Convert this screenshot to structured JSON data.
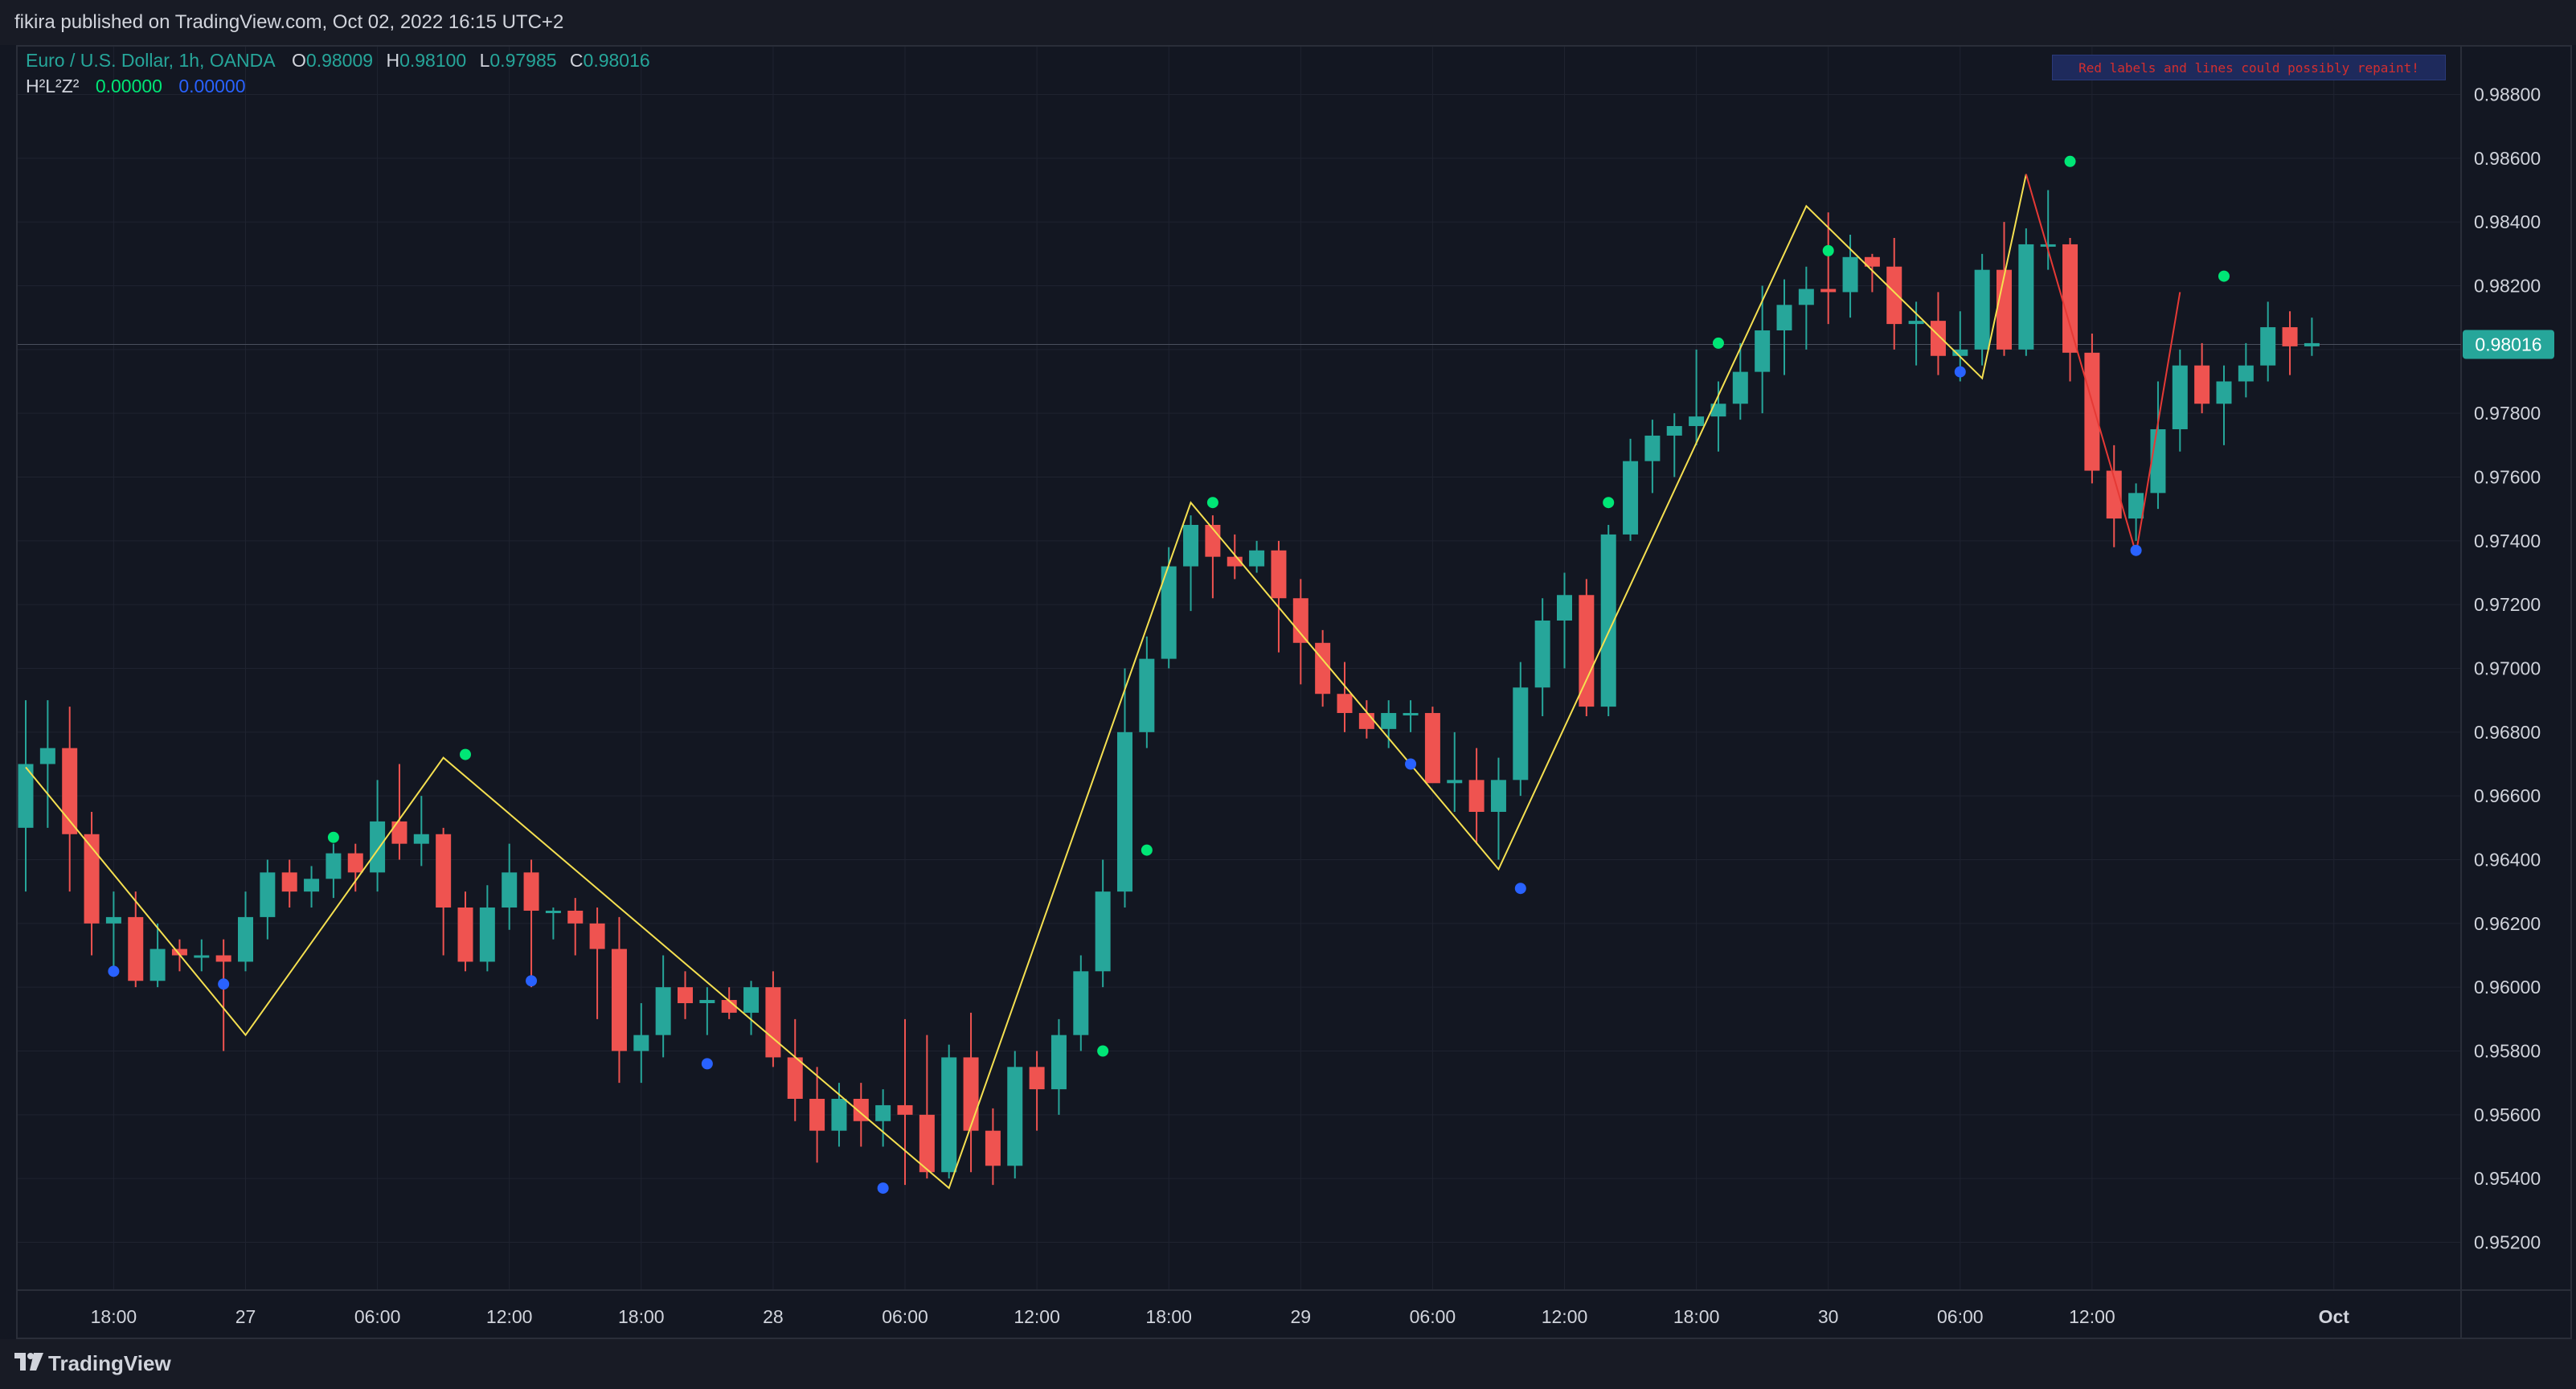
{
  "header": {
    "publisher_text": "fikira published on TradingView.com, Oct 02, 2022 16:15 UTC+2"
  },
  "legend": {
    "symbol": "Euro / U.S. Dollar, 1h, OANDA",
    "o_label": "O",
    "o_value": "0.98009",
    "h_label": "H",
    "h_value": "0.98100",
    "l_label": "L",
    "l_value": "0.97985",
    "c_label": "C",
    "c_value": "0.98016",
    "indicator_name": "H²L²Z²",
    "indicator_value_1": "0.00000",
    "indicator_value_2": "0.00000"
  },
  "warning_label": "Red labels and lines could possibly repaint!",
  "footer": {
    "logo_text": "TradingView"
  },
  "colors": {
    "background": "#131722",
    "up_candle": "#26a69a",
    "down_candle": "#ef5350",
    "zigzag": "#f5e050",
    "zigzag_repaint": "#e53935",
    "high_dot": "#00e676",
    "low_dot": "#2962ff",
    "price_label_bg": "#26a69a",
    "axis_text": "#d1d4dc"
  },
  "chart_data": {
    "type": "candlestick",
    "symbol": "EURUSD",
    "timeframe": "1h",
    "ylim": [
      0.9505,
      0.9895
    ],
    "y_ticks": [
      "0.98800",
      "0.98600",
      "0.98400",
      "0.98200",
      "0.98000",
      "0.97800",
      "0.97600",
      "0.97400",
      "0.97200",
      "0.97000",
      "0.96800",
      "0.96600",
      "0.96400",
      "0.96200",
      "0.96000",
      "0.95800",
      "0.95600",
      "0.95400",
      "0.95200"
    ],
    "x_ticks": [
      {
        "label": "18:00",
        "bar": 4
      },
      {
        "label": "27",
        "bar": 10
      },
      {
        "label": "06:00",
        "bar": 16
      },
      {
        "label": "12:00",
        "bar": 22
      },
      {
        "label": "18:00",
        "bar": 28
      },
      {
        "label": "28",
        "bar": 34
      },
      {
        "label": "06:00",
        "bar": 40
      },
      {
        "label": "12:00",
        "bar": 46
      },
      {
        "label": "18:00",
        "bar": 52
      },
      {
        "label": "29",
        "bar": 58
      },
      {
        "label": "06:00",
        "bar": 64
      },
      {
        "label": "12:00",
        "bar": 70
      },
      {
        "label": "18:00",
        "bar": 76
      },
      {
        "label": "30",
        "bar": 82
      },
      {
        "label": "06:00",
        "bar": 88
      },
      {
        "label": "12:00",
        "bar": 94
      },
      {
        "label": "Oct",
        "bar": 105
      }
    ],
    "last_price": "0.98016",
    "candles": [
      [
        0.965,
        0.969,
        0.963,
        0.967
      ],
      [
        0.967,
        0.969,
        0.965,
        0.9675
      ],
      [
        0.9675,
        0.9688,
        0.963,
        0.9648
      ],
      [
        0.9648,
        0.9655,
        0.961,
        0.962
      ],
      [
        0.962,
        0.963,
        0.9605,
        0.9622
      ],
      [
        0.9622,
        0.963,
        0.96,
        0.9602
      ],
      [
        0.9602,
        0.962,
        0.96,
        0.9612
      ],
      [
        0.9612,
        0.9615,
        0.9605,
        0.961
      ],
      [
        0.961,
        0.9615,
        0.9605,
        0.961
      ],
      [
        0.961,
        0.9615,
        0.958,
        0.9608
      ],
      [
        0.9608,
        0.963,
        0.9605,
        0.9622
      ],
      [
        0.9622,
        0.964,
        0.9615,
        0.9636
      ],
      [
        0.9636,
        0.964,
        0.9625,
        0.963
      ],
      [
        0.963,
        0.9638,
        0.9625,
        0.9634
      ],
      [
        0.9634,
        0.9645,
        0.9628,
        0.9642
      ],
      [
        0.9642,
        0.9645,
        0.963,
        0.9636
      ],
      [
        0.9636,
        0.9665,
        0.963,
        0.9652
      ],
      [
        0.9652,
        0.967,
        0.964,
        0.9645
      ],
      [
        0.9645,
        0.966,
        0.9638,
        0.9648
      ],
      [
        0.9648,
        0.965,
        0.961,
        0.9625
      ],
      [
        0.9625,
        0.963,
        0.9605,
        0.9608
      ],
      [
        0.9608,
        0.9632,
        0.9605,
        0.9625
      ],
      [
        0.9625,
        0.9645,
        0.9618,
        0.9636
      ],
      [
        0.9636,
        0.964,
        0.96,
        0.9624
      ],
      [
        0.9624,
        0.9625,
        0.9615,
        0.9624
      ],
      [
        0.9624,
        0.9628,
        0.961,
        0.962
      ],
      [
        0.962,
        0.9625,
        0.959,
        0.9612
      ],
      [
        0.9612,
        0.9622,
        0.957,
        0.958
      ],
      [
        0.958,
        0.9595,
        0.957,
        0.9585
      ],
      [
        0.9585,
        0.961,
        0.9578,
        0.96
      ],
      [
        0.96,
        0.9605,
        0.959,
        0.9595
      ],
      [
        0.9595,
        0.96,
        0.9585,
        0.9596
      ],
      [
        0.9596,
        0.96,
        0.959,
        0.9592
      ],
      [
        0.9592,
        0.9602,
        0.9585,
        0.96
      ],
      [
        0.96,
        0.9605,
        0.9575,
        0.9578
      ],
      [
        0.9578,
        0.959,
        0.9558,
        0.9565
      ],
      [
        0.9565,
        0.9575,
        0.9545,
        0.9555
      ],
      [
        0.9555,
        0.957,
        0.955,
        0.9565
      ],
      [
        0.9565,
        0.957,
        0.955,
        0.9558
      ],
      [
        0.9558,
        0.9568,
        0.955,
        0.9563
      ],
      [
        0.9563,
        0.959,
        0.9538,
        0.956
      ],
      [
        0.956,
        0.9585,
        0.954,
        0.9542
      ],
      [
        0.9542,
        0.9582,
        0.954,
        0.9578
      ],
      [
        0.9578,
        0.9592,
        0.9542,
        0.9555
      ],
      [
        0.9555,
        0.9562,
        0.9538,
        0.9544
      ],
      [
        0.9544,
        0.958,
        0.954,
        0.9575
      ],
      [
        0.9575,
        0.958,
        0.9555,
        0.9568
      ],
      [
        0.9568,
        0.959,
        0.956,
        0.9585
      ],
      [
        0.9585,
        0.961,
        0.958,
        0.9605
      ],
      [
        0.9605,
        0.964,
        0.96,
        0.963
      ],
      [
        0.963,
        0.97,
        0.9625,
        0.968
      ],
      [
        0.968,
        0.971,
        0.9675,
        0.9703
      ],
      [
        0.9703,
        0.9738,
        0.97,
        0.9732
      ],
      [
        0.9732,
        0.9748,
        0.9718,
        0.9745
      ],
      [
        0.9745,
        0.9748,
        0.9722,
        0.9735
      ],
      [
        0.9735,
        0.9742,
        0.9728,
        0.9732
      ],
      [
        0.9732,
        0.974,
        0.973,
        0.9737
      ],
      [
        0.9737,
        0.974,
        0.9705,
        0.9722
      ],
      [
        0.9722,
        0.9728,
        0.9695,
        0.9708
      ],
      [
        0.9708,
        0.9712,
        0.9688,
        0.9692
      ],
      [
        0.9692,
        0.9702,
        0.968,
        0.9686
      ],
      [
        0.9686,
        0.969,
        0.9678,
        0.9681
      ],
      [
        0.9681,
        0.969,
        0.9675,
        0.9686
      ],
      [
        0.9686,
        0.969,
        0.968,
        0.9686
      ],
      [
        0.9686,
        0.9688,
        0.9665,
        0.9664
      ],
      [
        0.9664,
        0.968,
        0.9655,
        0.9665
      ],
      [
        0.9665,
        0.9675,
        0.9645,
        0.9655
      ],
      [
        0.9655,
        0.9672,
        0.964,
        0.9665
      ],
      [
        0.9665,
        0.9702,
        0.966,
        0.9694
      ],
      [
        0.9694,
        0.9722,
        0.9685,
        0.9715
      ],
      [
        0.9715,
        0.973,
        0.97,
        0.9723
      ],
      [
        0.9723,
        0.9728,
        0.9685,
        0.9688
      ],
      [
        0.9688,
        0.9745,
        0.9685,
        0.9742
      ],
      [
        0.9742,
        0.9772,
        0.974,
        0.9765
      ],
      [
        0.9765,
        0.9778,
        0.9755,
        0.9773
      ],
      [
        0.9773,
        0.978,
        0.976,
        0.9776
      ],
      [
        0.9776,
        0.98,
        0.977,
        0.9779
      ],
      [
        0.9779,
        0.979,
        0.9768,
        0.9783
      ],
      [
        0.9783,
        0.9802,
        0.9778,
        0.9793
      ],
      [
        0.9793,
        0.982,
        0.978,
        0.9806
      ],
      [
        0.9806,
        0.9822,
        0.9792,
        0.9814
      ],
      [
        0.9814,
        0.9826,
        0.98,
        0.9819
      ],
      [
        0.9819,
        0.9843,
        0.9808,
        0.9818
      ],
      [
        0.9818,
        0.9836,
        0.981,
        0.9829
      ],
      [
        0.9829,
        0.983,
        0.9818,
        0.9826
      ],
      [
        0.9826,
        0.9835,
        0.98,
        0.9808
      ],
      [
        0.9808,
        0.9815,
        0.9795,
        0.9809
      ],
      [
        0.9809,
        0.9818,
        0.9792,
        0.9798
      ],
      [
        0.9798,
        0.9812,
        0.979,
        0.98
      ],
      [
        0.98,
        0.983,
        0.9795,
        0.9825
      ],
      [
        0.9825,
        0.984,
        0.9798,
        0.98
      ],
      [
        0.98,
        0.9838,
        0.9798,
        0.9833
      ],
      [
        0.9833,
        0.985,
        0.9825,
        0.9833
      ],
      [
        0.9833,
        0.9835,
        0.979,
        0.9799
      ],
      [
        0.9799,
        0.9805,
        0.9758,
        0.9762
      ],
      [
        0.9762,
        0.977,
        0.9738,
        0.9747
      ],
      [
        0.9747,
        0.9758,
        0.974,
        0.9755
      ],
      [
        0.9755,
        0.979,
        0.975,
        0.9775
      ],
      [
        0.9775,
        0.98,
        0.9768,
        0.9795
      ],
      [
        0.9795,
        0.9802,
        0.978,
        0.9783
      ],
      [
        0.9783,
        0.9795,
        0.977,
        0.979
      ],
      [
        0.979,
        0.9802,
        0.9785,
        0.9795
      ],
      [
        0.9795,
        0.9815,
        0.979,
        0.9807
      ],
      [
        0.9807,
        0.9812,
        0.9792,
        0.9801
      ],
      [
        0.9801,
        0.981,
        0.9798,
        0.9802
      ]
    ],
    "zigzag_confirmed": [
      {
        "bar": 0,
        "price": 0.9669
      },
      {
        "bar": 10,
        "price": 0.9585
      },
      {
        "bar": 19,
        "price": 0.9672
      },
      {
        "bar": 42,
        "price": 0.9537
      },
      {
        "bar": 53,
        "price": 0.9752
      },
      {
        "bar": 67,
        "price": 0.9637
      },
      {
        "bar": 81,
        "price": 0.9845
      },
      {
        "bar": 89,
        "price": 0.9791
      },
      {
        "bar": 91,
        "price": 0.9855
      }
    ],
    "zigzag_repaint": [
      {
        "bar": 91,
        "price": 0.9855
      },
      {
        "bar": 96,
        "price": 0.9736
      },
      {
        "bar": 98,
        "price": 0.9818
      }
    ],
    "high_dots": [
      {
        "bar": 14,
        "price": 0.9647
      },
      {
        "bar": 20,
        "price": 0.9673
      },
      {
        "bar": 49,
        "price": 0.958
      },
      {
        "bar": 51,
        "price": 0.9643
      },
      {
        "bar": 54,
        "price": 0.9752
      },
      {
        "bar": 72,
        "price": 0.9752
      },
      {
        "bar": 77,
        "price": 0.9802
      },
      {
        "bar": 82,
        "price": 0.9831
      },
      {
        "bar": 93,
        "price": 0.9859
      },
      {
        "bar": 100,
        "price": 0.9823
      }
    ],
    "low_dots": [
      {
        "bar": 4,
        "price": 0.9605
      },
      {
        "bar": 9,
        "price": 0.9601
      },
      {
        "bar": 23,
        "price": 0.9602
      },
      {
        "bar": 31,
        "price": 0.9576
      },
      {
        "bar": 39,
        "price": 0.9537
      },
      {
        "bar": 63,
        "price": 0.967
      },
      {
        "bar": 68,
        "price": 0.9631
      },
      {
        "bar": 88,
        "price": 0.9793
      },
      {
        "bar": 96,
        "price": 0.9737
      }
    ]
  }
}
